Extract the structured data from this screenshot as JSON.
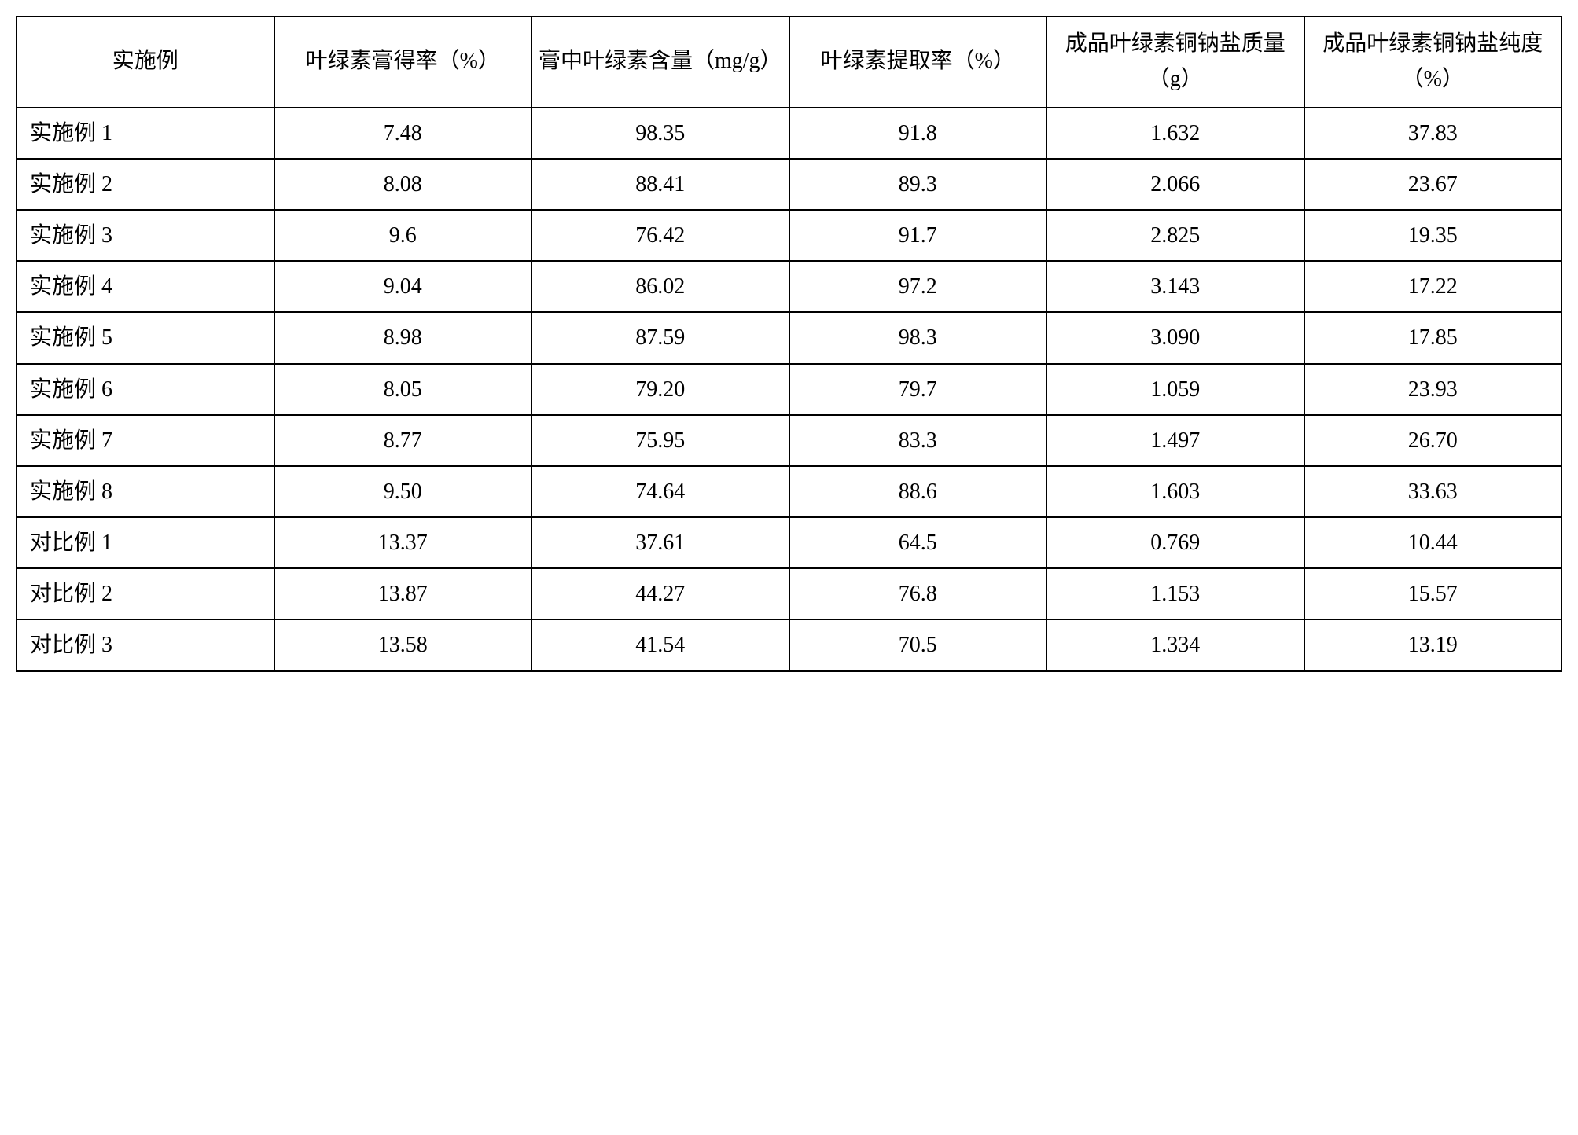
{
  "table": {
    "type": "table",
    "background_color": "#ffffff",
    "border_color": "#000000",
    "border_width": 2,
    "text_color": "#000000",
    "header_fontsize": 28,
    "cell_fontsize": 28,
    "columns": [
      "实施例",
      "叶绿素膏得率（%）",
      "膏中叶绿素含量（mg/g）",
      "叶绿素提取率（%）",
      "成品叶绿素铜钠盐质量（g）",
      "成品叶绿素铜钠盐纯度（%）"
    ],
    "rows": [
      {
        "label": "实施例 1",
        "values": [
          "7.48",
          "98.35",
          "91.8",
          "1.632",
          "37.83"
        ]
      },
      {
        "label": "实施例 2",
        "values": [
          "8.08",
          "88.41",
          "89.3",
          "2.066",
          "23.67"
        ]
      },
      {
        "label": "实施例 3",
        "values": [
          "9.6",
          "76.42",
          "91.7",
          "2.825",
          "19.35"
        ]
      },
      {
        "label": "实施例 4",
        "values": [
          "9.04",
          "86.02",
          "97.2",
          "3.143",
          "17.22"
        ]
      },
      {
        "label": "实施例 5",
        "values": [
          "8.98",
          "87.59",
          "98.3",
          "3.090",
          "17.85"
        ]
      },
      {
        "label": "实施例 6",
        "values": [
          "8.05",
          "79.20",
          "79.7",
          "1.059",
          "23.93"
        ]
      },
      {
        "label": "实施例 7",
        "values": [
          "8.77",
          "75.95",
          "83.3",
          "1.497",
          "26.70"
        ]
      },
      {
        "label": "实施例 8",
        "values": [
          "9.50",
          "74.64",
          "88.6",
          "1.603",
          "33.63"
        ]
      },
      {
        "label": "对比例 1",
        "values": [
          "13.37",
          "37.61",
          "64.5",
          "0.769",
          "10.44"
        ]
      },
      {
        "label": "对比例 2",
        "values": [
          "13.87",
          "44.27",
          "76.8",
          "1.153",
          "15.57"
        ]
      },
      {
        "label": "对比例 3",
        "values": [
          "13.58",
          "41.54",
          "70.5",
          "1.334",
          "13.19"
        ]
      }
    ],
    "column_alignment": [
      "left",
      "center",
      "center",
      "center",
      "center",
      "center"
    ]
  }
}
